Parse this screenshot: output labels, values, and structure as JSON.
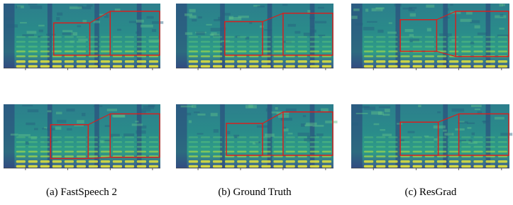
{
  "captions": [
    "(a) FastSpeech 2",
    "(b) Ground Truth",
    "(c) ResGrad"
  ]
}
